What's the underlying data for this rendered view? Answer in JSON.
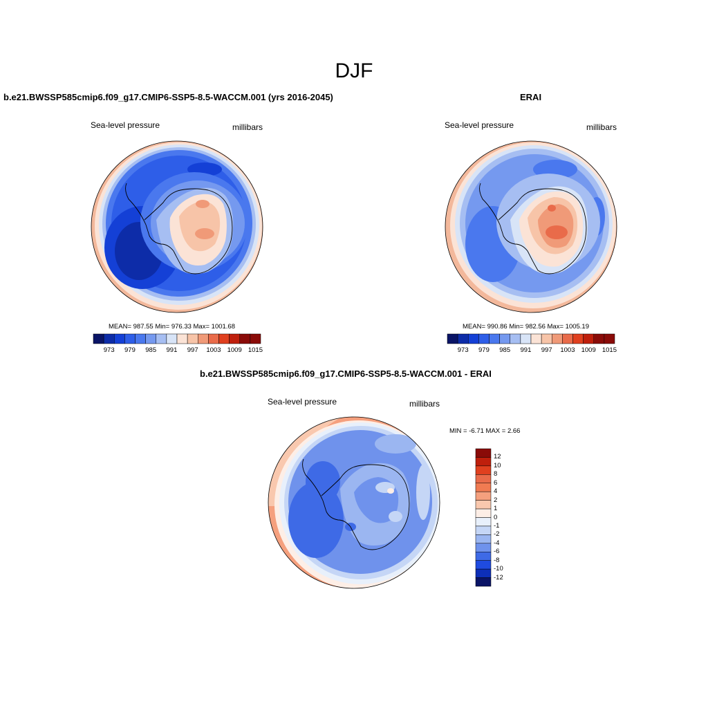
{
  "figure": {
    "season": "DJF",
    "contour_colors": [
      "#0a1466",
      "#0d2ca8",
      "#1440d6",
      "#2e5ee8",
      "#4a78ee",
      "#7599ef",
      "#a6bef2",
      "#d8e4f7",
      "#fbe3d6",
      "#f7c4a8",
      "#f09a78",
      "#e96b4a",
      "#e0401f",
      "#bf1f0c",
      "#8a0b08"
    ]
  },
  "panels": {
    "model": {
      "title": "b.e21.BWSSP585cmip6.f09_g17.CMIP6-SSP5-8.5-WACCM.001 (yrs 2016-2045)",
      "left_label": "Sea-level pressure",
      "right_label": "millibars",
      "stats": "MEAN= 987.55  Min= 976.33  Max= 1001.68",
      "colorbar_labels": [
        "973",
        "979",
        "985",
        "991",
        "997",
        "1003",
        "1009",
        "1015"
      ]
    },
    "obs": {
      "title": "ERAI",
      "left_label": "Sea-level pressure",
      "right_label": "millibars",
      "stats": "MEAN= 990.86  Min= 982.56  Max= 1005.19",
      "colorbar_labels": [
        "973",
        "979",
        "985",
        "991",
        "997",
        "1003",
        "1009",
        "1015"
      ]
    },
    "diff": {
      "title": "b.e21.BWSSP585cmip6.f09_g17.CMIP6-SSP5-8.5-WACCM.001 - ERAI",
      "left_label": "Sea-level pressure",
      "right_label": "millibars",
      "stats": "MIN =  -6.71 MAX =   2.66",
      "colorbar_labels": [
        "12",
        "10",
        "8",
        "6",
        "4",
        "2",
        "1",
        "0",
        "-1",
        "-2",
        "-4",
        "-6",
        "-8",
        "-10",
        "-12"
      ],
      "colorbar_colors": [
        "#8a0b08",
        "#bf1f0c",
        "#e0401f",
        "#e96b4a",
        "#f07b52",
        "#f5a07e",
        "#f9c8ae",
        "#fdeee6",
        "#e8f0fb",
        "#c5d6f6",
        "#9bb6f1",
        "#6f92ec",
        "#3e6ae6",
        "#1f4be0",
        "#0d2fb8",
        "#0a1466"
      ]
    }
  }
}
